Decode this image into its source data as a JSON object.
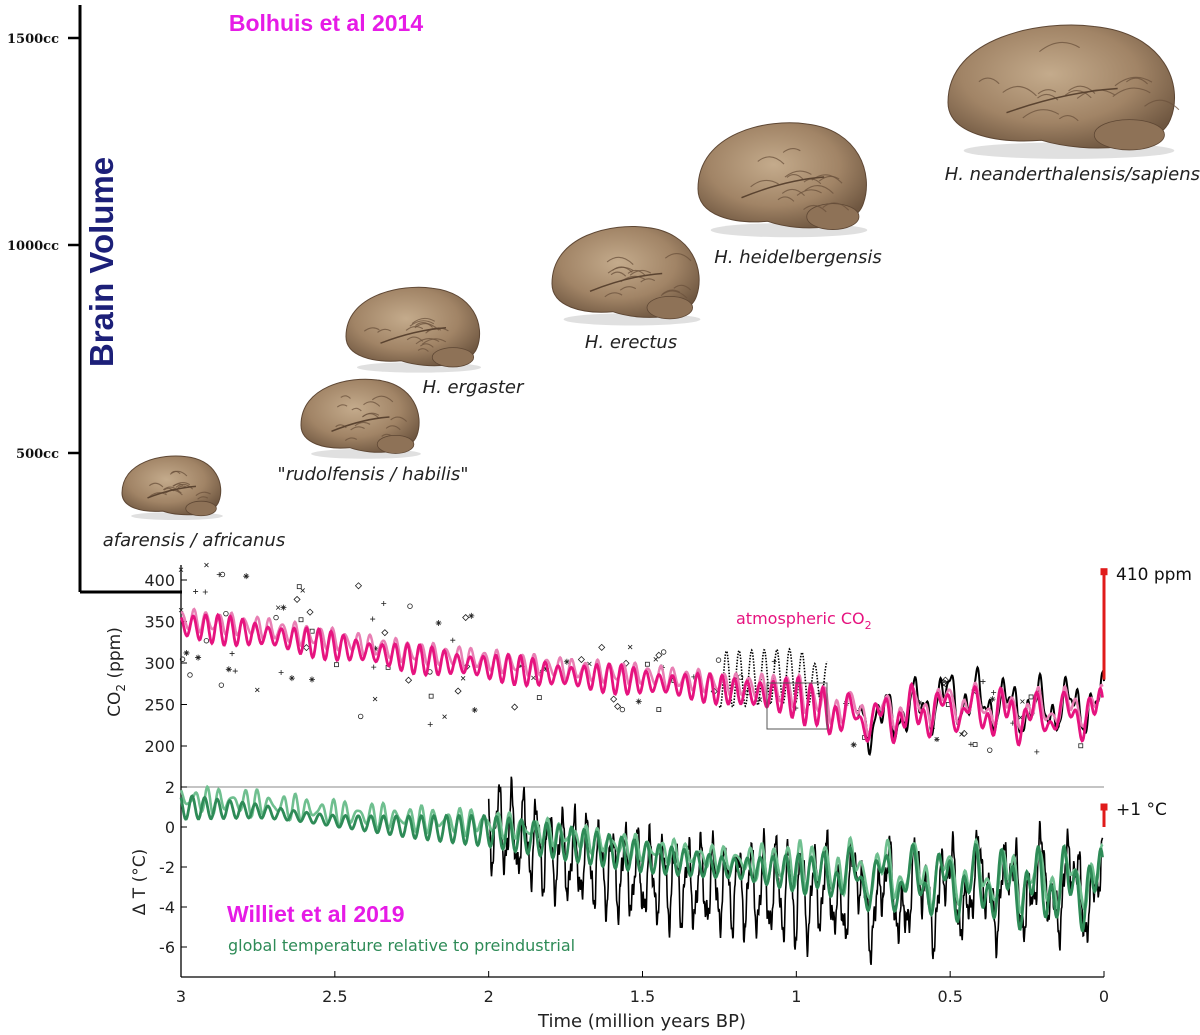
{
  "brain_chart": {
    "title": "Bolhuis et al 2014",
    "ylabel": "Brain Volume",
    "ticks": [
      "1500cc",
      "1000cc",
      "500cc"
    ],
    "species": [
      {
        "label": "afarensis / africanus"
      },
      {
        "label": "\"rudolfensis / habilis\""
      },
      {
        "label": "H. ergaster"
      },
      {
        "label": "H. erectus"
      },
      {
        "label": "H. heidelbergensis"
      },
      {
        "label": "H. neanderthalensis/sapiens"
      }
    ]
  },
  "colors": {
    "co2": "#e6137f",
    "co2_light": "#e87fb4",
    "temp": "#2e8b57",
    "temp_light": "#6fbf8f",
    "observed": "#e01b1b",
    "brain_title": "#e61be6",
    "brain_axis_label": "#1c1f78",
    "brain": "#a18466"
  },
  "chart_data": [
    {
      "type": "bar",
      "title": "Bolhuis et al 2014",
      "ylabel": "Brain Volume",
      "ylim": [
        250,
        1650
      ],
      "yticks": [
        500,
        1000,
        1500
      ],
      "categories": [
        "afarensis / africanus",
        "\"rudolfensis / habilis\"",
        "H. ergaster",
        "H. erectus",
        "H. heidelbergensis",
        "H. neanderthalensis/sapiens"
      ],
      "values": [
        430,
        600,
        760,
        900,
        1130,
        1330
      ],
      "ages_myr": [
        2.98,
        2.58,
        2.33,
        1.88,
        1.4,
        0.85
      ]
    },
    {
      "type": "line",
      "title": "",
      "ylabel": "CO2 (ppm)",
      "xlabel": "Time (million years BP)",
      "xlim": [
        3,
        0
      ],
      "ylim": [
        180,
        420
      ],
      "yticks": [
        200,
        250,
        300,
        350,
        400
      ],
      "annotation": "atmospheric CO2",
      "endpoint_label": "410 ppm",
      "series": [
        {
          "x": [
            3.0,
            2.75,
            2.5,
            2.25,
            2.0,
            1.75,
            1.5,
            1.25,
            1.0,
            0.9,
            0.75,
            0.5,
            0.25,
            0.0
          ],
          "values": [
            345,
            335,
            320,
            305,
            295,
            285,
            278,
            268,
            258,
            240,
            232,
            245,
            235,
            240
          ]
        },
        {
          "x": [
            1.25,
            1.0,
            0.75,
            0.5,
            0.25,
            0.0
          ],
          "values": [
            260,
            265,
            230,
            260,
            245,
            250
          ]
        }
      ],
      "observed": {
        "x": [
          0.0,
          0.0
        ],
        "values": [
          280,
          410
        ]
      }
    },
    {
      "type": "line",
      "title": "Williet et al 2019",
      "ylabel": "Δ T (°C)",
      "xlabel": "Time (million years BP)",
      "xlim": [
        3,
        0
      ],
      "ylim": [
        -7.5,
        2
      ],
      "yticks": [
        -6,
        -4,
        -2,
        0,
        2
      ],
      "xticks": [
        3,
        2.5,
        2,
        1.5,
        1,
        0.5,
        0
      ],
      "annotation": "global temperature relative to preindustrial",
      "endpoint_label": "+1 °C",
      "series": [
        {
          "x": [
            3.0,
            2.75,
            2.5,
            2.25,
            2.0,
            1.75,
            1.5,
            1.25,
            1.0,
            0.75,
            0.5,
            0.25,
            0.0
          ],
          "values": [
            1.0,
            0.8,
            0.3,
            0.0,
            -0.2,
            -0.8,
            -1.5,
            -2.0,
            -2.3,
            -2.6,
            -2.8,
            -3.0,
            -3.0
          ]
        },
        {
          "x": [
            2.0,
            1.75,
            1.5,
            1.25,
            1.0,
            0.75,
            0.5,
            0.25,
            0.0
          ],
          "values": [
            0.2,
            -1.5,
            -2.5,
            -3.0,
            -3.2,
            -3.5,
            -3.2,
            -3.0,
            -3.0
          ]
        }
      ],
      "observed": {
        "x": [
          0.0,
          0.0
        ],
        "values": [
          0,
          1
        ]
      }
    }
  ]
}
